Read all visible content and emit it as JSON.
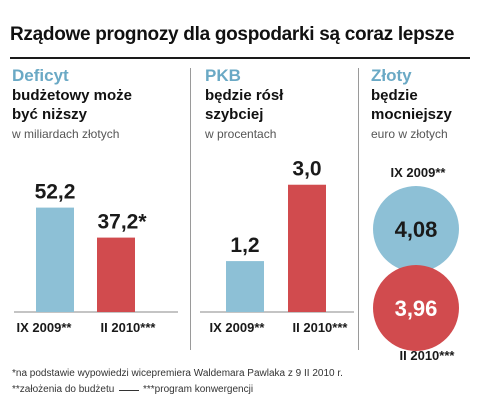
{
  "title": "Rządowe prognozy dla gospodarki są coraz lepsze",
  "footnotes": {
    "note1": "*na podstawie wypowiedzi wicepremiera Waldemara Pawlaka z 9 II 2010 r.",
    "note2": "**założenia do budżetu",
    "note3": "***program konwergencji"
  },
  "colors": {
    "blue": "#8dc0d6",
    "red": "#d14b4e",
    "title_blue": "#6aa9c5"
  },
  "chart_data": [
    {
      "type": "bar",
      "title": "Deficyt",
      "subtitle": "budżetowy może być niższy",
      "unit": "w miliardach złotych",
      "categories": [
        "IX 2009**",
        "II 2010***"
      ],
      "values": [
        52.2,
        37.2
      ],
      "value_labels": [
        "52,2",
        "37,2*"
      ],
      "ylim": [
        0,
        60
      ]
    },
    {
      "type": "bar",
      "title": "PKB",
      "subtitle": "będzie rósł szybciej",
      "unit": "w procentach",
      "categories": [
        "IX 2009**",
        "II 2010***"
      ],
      "values": [
        1.2,
        3.0
      ],
      "value_labels": [
        "1,2",
        "3,0"
      ],
      "ylim": [
        0,
        3.3
      ]
    },
    {
      "type": "bubble",
      "title": "Złoty",
      "subtitle": "będzie mocniejszy",
      "unit": "euro w złotych",
      "categories": [
        "IX 2009**",
        "II 2010***"
      ],
      "values": [
        4.08,
        3.96
      ],
      "value_labels": [
        "4,08",
        "3,96"
      ]
    }
  ]
}
